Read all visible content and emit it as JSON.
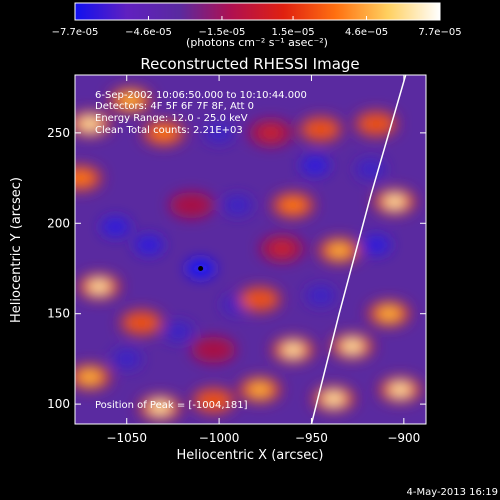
{
  "colorbar": {
    "tick_labels": [
      "-7.7e-05",
      "-4.6e-05",
      "-1.5e-05",
      "1.5e-05",
      "4.6e-05",
      "7.7e-05"
    ],
    "units_line": "(photons cm⁻² s⁻¹ asec⁻²)",
    "colors": [
      "#1010f0",
      "#6020c0",
      "#5a2aa0",
      "#b01050",
      "#e02010",
      "#ff7010",
      "#ffd060",
      "#ffffff"
    ]
  },
  "annotations": {
    "time_range": "6-Sep-2002 10:06:50.000 to 10:10:44.000",
    "detectors": "Detectors: 4F 5F 6F 7F 8F, Att 0",
    "energy_range": "Energy Range: 12.0 - 25.0 keV",
    "clean_counts": "Clean     Total counts: 2.21E+03",
    "peak_position": "Position of Peak = [-1004,181]"
  },
  "footer_timestamp": "4-May-2013 16:19",
  "chart_data": {
    "type": "heatmap",
    "title": "Reconstructed RHESSI Image",
    "xlabel": "Heliocentric X (arcsec)",
    "ylabel": "Heliocentric Y (arcsec)",
    "xlim": [
      -1078,
      -888
    ],
    "ylim": [
      89,
      282
    ],
    "x_ticks": [
      -1050,
      -1000,
      -950,
      -900
    ],
    "y_ticks": [
      100,
      150,
      200,
      250
    ],
    "x_tick_labels": [
      "−1050",
      "−1000",
      "−950",
      "−900"
    ],
    "y_tick_labels": [
      "100",
      "150",
      "200",
      "250"
    ],
    "value_range": [
      -7.7e-05,
      7.7e-05
    ],
    "limb_curve": [
      [
        -950,
        89
      ],
      [
        -935,
        150
      ],
      [
        -918,
        215
      ],
      [
        -899,
        282
      ]
    ],
    "marked_point": [
      -1010,
      175
    ],
    "blobs": [
      {
        "x": -1070,
        "y": 255,
        "v": 1.0
      },
      {
        "x": -1048,
        "y": 268,
        "v": 0.9
      },
      {
        "x": -1030,
        "y": 250,
        "v": 0.65
      },
      {
        "x": -1075,
        "y": 225,
        "v": 0.7
      },
      {
        "x": -1065,
        "y": 165,
        "v": 0.95
      },
      {
        "x": -1042,
        "y": 145,
        "v": 0.6
      },
      {
        "x": -1070,
        "y": 115,
        "v": 0.9
      },
      {
        "x": -1032,
        "y": 98,
        "v": 1.0
      },
      {
        "x": -1003,
        "y": 102,
        "v": 0.6
      },
      {
        "x": -978,
        "y": 108,
        "v": 0.85
      },
      {
        "x": -960,
        "y": 130,
        "v": 0.95
      },
      {
        "x": -978,
        "y": 158,
        "v": 0.6
      },
      {
        "x": -960,
        "y": 210,
        "v": 0.75
      },
      {
        "x": -966,
        "y": 186,
        "v": 0.55
      },
      {
        "x": -972,
        "y": 250,
        "v": 0.5
      },
      {
        "x": -945,
        "y": 252,
        "v": 0.6
      },
      {
        "x": -935,
        "y": 185,
        "v": 0.85
      },
      {
        "x": -915,
        "y": 255,
        "v": 0.6
      },
      {
        "x": -905,
        "y": 212,
        "v": 0.95
      },
      {
        "x": -928,
        "y": 132,
        "v": 1.0
      },
      {
        "x": -908,
        "y": 150,
        "v": 0.9
      },
      {
        "x": -938,
        "y": 103,
        "v": 1.0
      },
      {
        "x": -902,
        "y": 108,
        "v": 0.95
      },
      {
        "x": -1015,
        "y": 210,
        "v": 0.45
      },
      {
        "x": -1003,
        "y": 130,
        "v": 0.4
      },
      {
        "x": -1010,
        "y": 175,
        "v": -1.0
      },
      {
        "x": -1056,
        "y": 198,
        "v": -0.75
      },
      {
        "x": -1038,
        "y": 188,
        "v": -0.7
      },
      {
        "x": -1000,
        "y": 250,
        "v": -0.6
      },
      {
        "x": -990,
        "y": 155,
        "v": -0.55
      },
      {
        "x": -1050,
        "y": 125,
        "v": -0.55
      },
      {
        "x": -948,
        "y": 232,
        "v": -0.7
      },
      {
        "x": -915,
        "y": 188,
        "v": -0.8
      },
      {
        "x": -918,
        "y": 230,
        "v": -0.5
      },
      {
        "x": -990,
        "y": 210,
        "v": -0.45
      },
      {
        "x": -1022,
        "y": 140,
        "v": -0.45
      },
      {
        "x": -945,
        "y": 160,
        "v": -0.5
      }
    ]
  }
}
